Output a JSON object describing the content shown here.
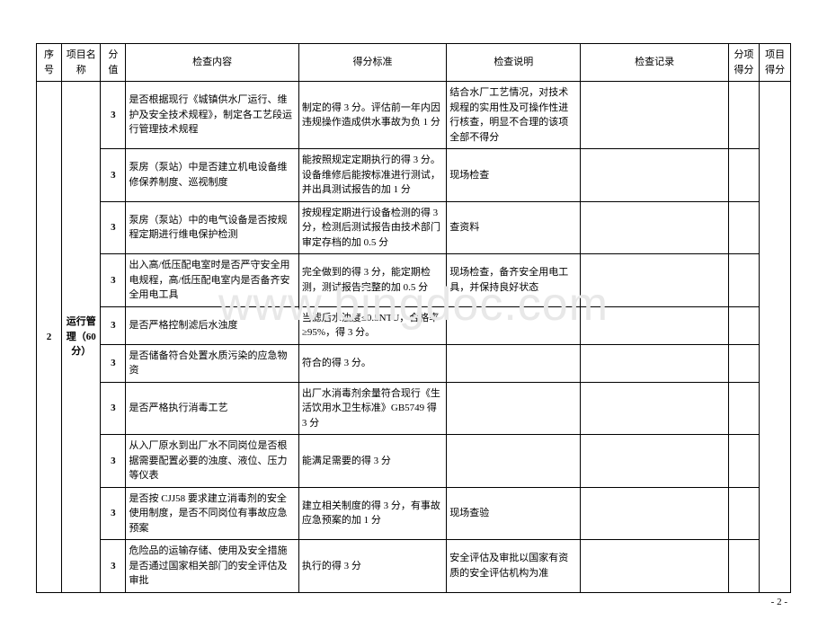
{
  "watermark": "www.bingdoc.com",
  "pageNum": "- 2 -",
  "headers": {
    "seq": "序号",
    "item": "项目名称",
    "score": "分值",
    "content": "检查内容",
    "criteria": "得分标准",
    "desc": "检查说明",
    "record": "检查记录",
    "subscore": "分项得分",
    "itemscore": "项目得分"
  },
  "group": {
    "seq": "2",
    "name": "运行管理（60 分）"
  },
  "rows": [
    {
      "score": "3",
      "content": "是否根据现行《城镇供水厂运行、维护及安全技术规程》，制定各工艺段运行管理技术规程",
      "criteria": "制定的得 3 分。评估前一年内因违规操作造成供水事故为负 1 分",
      "desc": "结合水厂工艺情况，对技术规程的实用性及可操作性进行核查，明显不合理的该项全部不得分",
      "record": ""
    },
    {
      "score": "3",
      "content": "泵房（泵站）中是否建立机电设备维修保养制度、巡视制度",
      "criteria": "能按照规定定期执行的得 3 分。设备维修后能按标准进行测试，并出具测试报告的加 1 分",
      "desc": "现场检查",
      "record": ""
    },
    {
      "score": "3",
      "content": "泵房（泵站）中的电气设备是否按规程定期进行维电保护检测",
      "criteria": "按规程定期进行设备检测的得 3 分，检测后测试报告由技术部门审定存档的加 0.5 分",
      "desc": "查资料",
      "record": ""
    },
    {
      "score": "3",
      "content": "出入高/低压配电室时是否严守安全用电规程，高/低压配电室内是否备齐安全用电工具",
      "criteria": "完全做到的得 3 分，能定期检测，测试报告完整的加 0.5 分",
      "desc": "现场检查，备齐安全用电工具，并保持良好状态",
      "record": ""
    },
    {
      "score": "3",
      "content": "是否严格控制滤后水浊度",
      "criteria": "当滤后水浊度≤0.5NTU，合格率≥95%，得 3 分。",
      "desc": "",
      "record": ""
    },
    {
      "score": "3",
      "content": "是否储备符合处置水质污染的应急物资",
      "criteria": "符合的得 3 分。",
      "desc": "",
      "record": ""
    },
    {
      "score": "3",
      "content": "是否严格执行消毒工艺",
      "criteria": "出厂水消毒剂余量符合现行《生活饮用水卫生标准》GB5749 得 3 分",
      "desc": "",
      "record": ""
    },
    {
      "score": "3",
      "content": "从入厂原水到出厂水不同岗位是否根据需要配置必要的浊度、液位、压力等仪表",
      "criteria": "能满足需要的得 3 分",
      "desc": "",
      "record": ""
    },
    {
      "score": "3",
      "content": "是否按 CJJ58 要求建立消毒剂的安全使用制度，是否不同岗位有事故应急预案",
      "criteria": "建立相关制度的得 3 分，有事故应急预案的加 1 分",
      "desc": "现场查验",
      "record": ""
    },
    {
      "score": "3",
      "content": "危险品的运输存储、使用及安全措施是否通过国家相关部门的安全评估及审批",
      "criteria": "执行的得 3 分",
      "desc": "安全评估及审批以国家有资质的安全评估机构为准",
      "record": ""
    }
  ]
}
